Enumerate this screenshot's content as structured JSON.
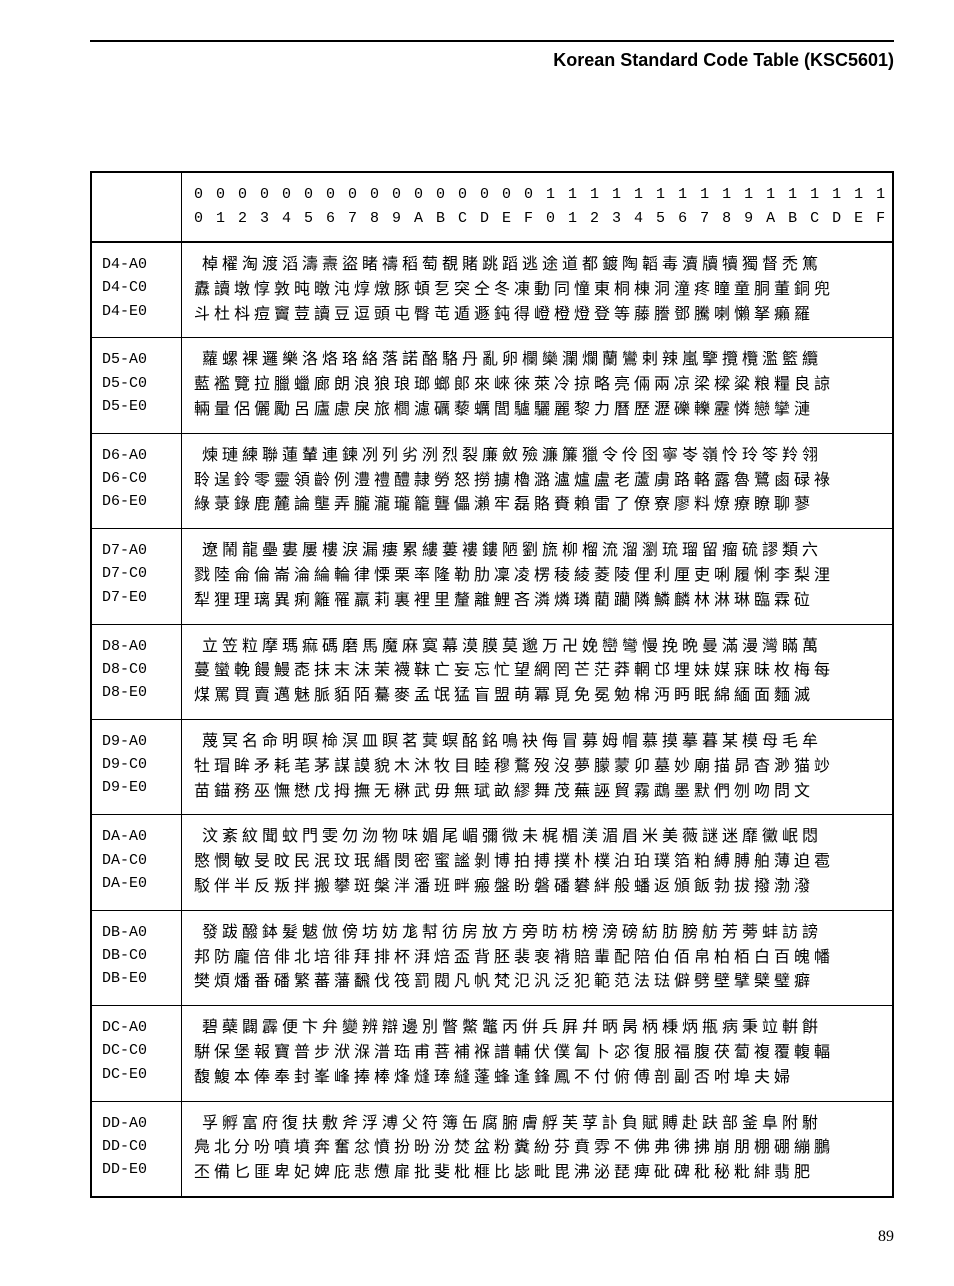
{
  "title": "Korean Standard Code Table (KSC5601)",
  "page_number": "89",
  "header_row1": "0 0 0 0 0 0 0 0 0 0 0 0 0 0 0 0 1 1 1 1 1 1 1 1 1 1 1 1 1 1 1 1",
  "header_row2": "0 1 2 3 4 5 6 7 8 9 A B C D E F 0 1 2 3 4 5 6 7 8 9 A B C D E F",
  "groups": [
    {
      "labels": [
        "D4-A0",
        "D4-C0",
        "D4-E0"
      ],
      "rows": [
        " 棹櫂淘渡滔濤燾盜睹禱稻萄覩賭跳蹈逃途道都鍍陶韜毒瀆牘犢獨督禿篤",
        "纛讀墩惇敦旽暾沌焞燉豚頓乭突仝冬凍動同憧東桐棟洞潼疼瞳童胴董銅兜",
        "斗杜枓痘竇荳讀豆逗頭屯臀芚遁遯鈍得嶝橙燈登等藤謄鄧騰喇懶拏癩羅"
      ]
    },
    {
      "labels": [
        "D5-A0",
        "D5-C0",
        "D5-E0"
      ],
      "rows": [
        " 蘿螺裸邏樂洛烙珞絡落諾酪駱丹亂卵欄欒瀾爛蘭鸞剌辣嵐擥攬欖濫籃纜",
        "藍襤覽拉臘蠟廊朗浪狼琅瑯螂郞來崍徠萊冷掠略亮倆兩凉梁樑粱粮糧良諒",
        "輛量侶儷勵呂廬慮戾旅櫚濾礪藜蠣閭驢驪麗黎力曆歷瀝礫轢靂憐戀攣漣"
      ]
    },
    {
      "labels": [
        "D6-A0",
        "D6-C0",
        "D6-E0"
      ],
      "rows": [
        " 煉璉練聯蓮輦連鍊冽列劣洌烈裂廉斂殮濂簾獵令伶囹寧岺嶺怜玲笭羚翎",
        "聆逞鈴零靈領齡例澧禮醴隷勞怒撈擄櫓潞瀘爐盧老蘆虜路輅露魯鷺鹵碌祿",
        "綠菉錄鹿麓論壟弄朧瀧瓏籠聾儡瀨牢磊賂賚賴雷了僚寮廖料燎療瞭聊蓼"
      ]
    },
    {
      "labels": [
        "D7-A0",
        "D7-C0",
        "D7-E0"
      ],
      "rows": [
        " 遼鬧龍壘婁屢樓淚漏瘻累縷蔞褸鏤陋劉旒柳榴流溜瀏琉瑠留瘤硫謬類六",
        "戮陸侖倫崙淪綸輪律慄栗率隆勒肋凜凌楞稜綾菱陵俚利厘吏唎履悧李梨浬",
        "犁狸理璃異痢籬罹羸莉裏裡里釐離鯉吝潾燐璘藺躪隣鱗麟林淋琳臨霖砬"
      ]
    },
    {
      "labels": [
        "D8-A0",
        "D8-C0",
        "D8-E0"
      ],
      "rows": [
        " 立笠粒摩瑪痲碼磨馬魔麻寞幕漠膜莫邈万卍娩巒彎慢挽晩曼滿漫灣瞞萬",
        "蔓蠻輓饅鰻唜抹末沫茉襪靺亡妄忘忙望網罔芒茫莽輞邙埋妹媒寐昧枚梅每",
        "煤罵買賣邁魅脈貊陌驀麥孟氓猛盲盟萌冪覓免冕勉棉沔眄眠綿緬面麵滅"
      ]
    },
    {
      "labels": [
        "D9-A0",
        "D9-C0",
        "D9-E0"
      ],
      "rows": [
        " 蔑冥名命明暝椧溟皿瞑茗蓂螟酩銘鳴袂侮冒募姆帽慕摸摹暮某模母毛牟",
        "牡瑁眸矛耗芼茅謀謨貌木沐牧目睦穆鶩歿沒夢朦蒙卯墓妙廟描昴杳渺猫竗",
        "苗錨務巫憮懋戊拇撫无楙武毋無珷畝繆舞茂蕪誣貿霧鵡墨默們刎吻問文"
      ]
    },
    {
      "labels": [
        "DA-A0",
        "DA-C0",
        "DA-E0"
      ],
      "rows": [
        " 汶紊紋聞蚊門雯勿沕物味媚尾嵋彌微未梶楣渼湄眉米美薇謎迷靡黴岷悶",
        "愍憫敏旻旼民泯玟珉緡閔密蜜謐剝博拍搏撲朴樸泊珀璞箔粕縛膊舶薄迫雹",
        "駁伴半反叛拌搬攀斑槃泮潘班畔瘢盤盼磐磻礬絆般蟠返頒飯勃拔撥渤潑"
      ]
    },
    {
      "labels": [
        "DB-A0",
        "DB-C0",
        "DB-E0"
      ],
      "rows": [
        " 發跋醱鉢髮魃倣傍坊妨尨幇彷房放方旁昉枋榜滂磅紡肪膀舫芳蒡蚌訪謗",
        "邦防龐倍俳北培徘拜排杯湃焙盃背胚裴裵褙賠輩配陪伯佰帛柏栢白百魄幡",
        "樊煩燔番磻繁蕃藩飜伐筏罰閥凡帆梵氾汎泛犯範范法琺僻劈壁擘檗璧癖"
      ]
    },
    {
      "labels": [
        "DC-A0",
        "DC-C0",
        "DC-E0"
      ],
      "rows": [
        " 碧蘗闢霹便卞弁變辨辯邊別瞥鱉鼈丙倂兵屛幷昞昺柄棅炳甁病秉竝輧餠",
        "騈保堡報寶普步洑湺潽珤甫菩補褓譜輔伏僕匐卜宓復服福腹茯蔔複覆輹輻",
        "馥鰒本俸奉封峯峰捧棒烽熢琫縫蓬蜂逢鋒鳳不付俯傅剖副否咐埠夫婦"
      ]
    },
    {
      "labels": [
        "DD-A0",
        "DD-C0",
        "DD-E0"
      ],
      "rows": [
        " 孚孵富府復扶敷斧浮溥父符簿缶腐腑膚艀芙莩訃負賦賻赴趺部釜阜附駙",
        "鳧北分吩噴墳奔奮忿憤扮昐汾焚盆粉糞紛芬賁雰不佛弗彿拂崩朋棚硼繃鵬",
        "丕備匕匪卑妃婢庇悲憊扉批斐枇榧比毖毗毘沸泌琵痺砒碑秕秘粃緋翡肥"
      ]
    }
  ]
}
